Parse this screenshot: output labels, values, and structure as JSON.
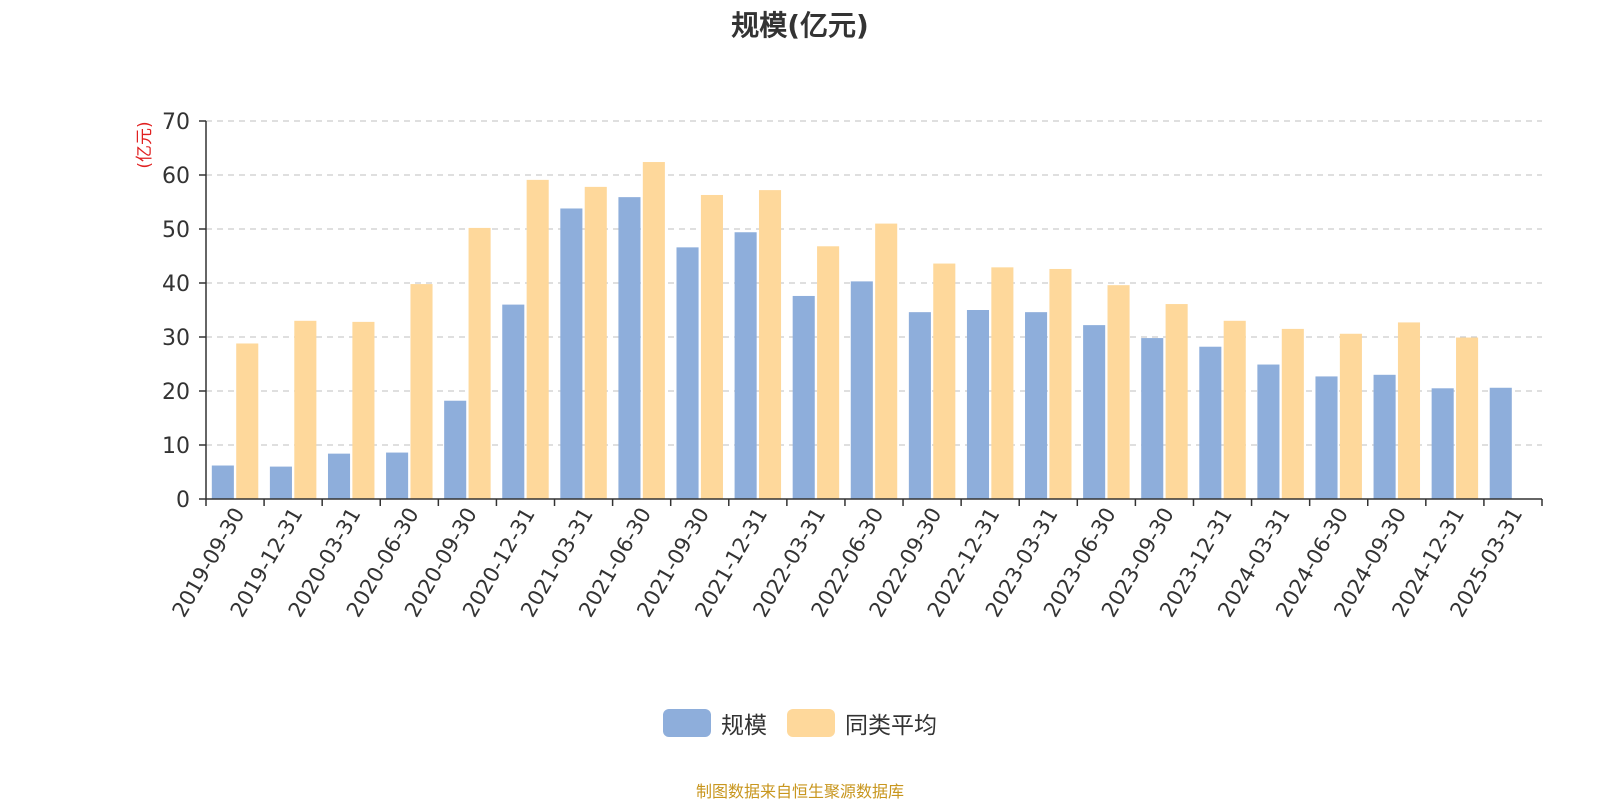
{
  "chart_data": {
    "type": "bar",
    "title": "规模(亿元)",
    "ylabel": "(亿元)",
    "xlabel": "",
    "ylim": [
      0,
      70
    ],
    "yticks": [
      0,
      10,
      20,
      30,
      40,
      50,
      60,
      70
    ],
    "grid": "horizontal-dashed",
    "legend_position": "bottom-center",
    "categories": [
      "2019-09-30",
      "2019-12-31",
      "2020-03-31",
      "2020-06-30",
      "2020-09-30",
      "2020-12-31",
      "2021-03-31",
      "2021-06-30",
      "2021-09-30",
      "2021-12-31",
      "2022-03-31",
      "2022-06-30",
      "2022-09-30",
      "2022-12-31",
      "2023-03-31",
      "2023-06-30",
      "2023-09-30",
      "2023-12-31",
      "2024-03-31",
      "2024-06-30",
      "2024-09-30",
      "2024-12-31",
      "2025-03-31"
    ],
    "series": [
      {
        "name": "规模",
        "color": "#8eaedb",
        "values": [
          6.2,
          6.0,
          8.4,
          8.6,
          18.2,
          36.0,
          53.8,
          55.9,
          46.6,
          49.4,
          37.6,
          40.3,
          34.6,
          35.0,
          34.6,
          32.2,
          29.8,
          28.2,
          24.9,
          22.7,
          23.0,
          20.5,
          20.6
        ]
      },
      {
        "name": "同类平均",
        "color": "#fed89b",
        "values": [
          28.8,
          33.0,
          32.8,
          39.8,
          50.2,
          59.1,
          57.8,
          62.4,
          56.3,
          57.2,
          46.8,
          51.0,
          43.6,
          42.9,
          42.6,
          39.6,
          36.1,
          33.0,
          31.5,
          30.6,
          32.7,
          29.9,
          null
        ]
      }
    ]
  },
  "footer": {
    "source": "制图数据来自恒生聚源数据库"
  },
  "colors": {
    "axis": "#333333",
    "grid": "#cccccc",
    "ylabel": "#e02020",
    "source": "#c8961e"
  }
}
